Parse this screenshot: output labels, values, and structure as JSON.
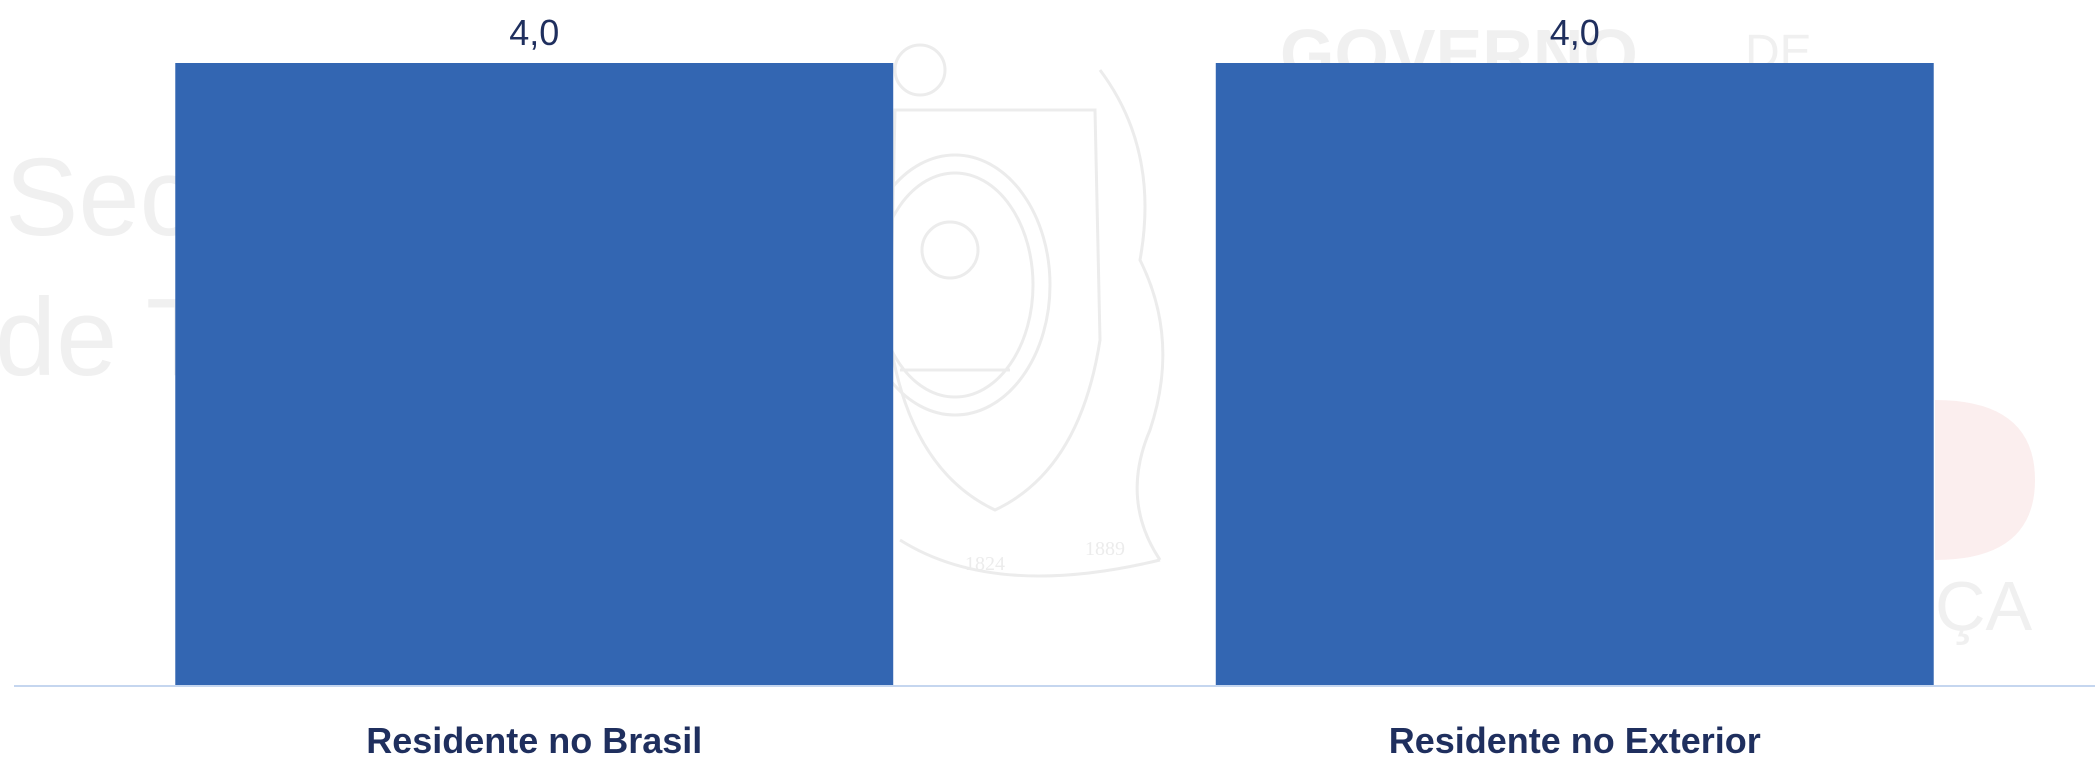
{
  "chart_data": {
    "type": "bar",
    "categories": [
      "Residente no Brasil",
      "Residente no Exterior"
    ],
    "values": [
      4.0,
      4.0
    ],
    "value_labels": [
      "4,0",
      "4,0"
    ],
    "title": "",
    "xlabel": "",
    "ylabel": "",
    "ylim": [
      0,
      4
    ],
    "grid": false,
    "legend": "none"
  },
  "colors": {
    "bar": "#3366b2",
    "value_label": "#1f2f5e",
    "category_label": "#1f2f5e",
    "axis_line": "#c5d6ef",
    "watermark": "#f2f2f2"
  },
  "watermark_text": {
    "line1": "Sec",
    "line2": "de T",
    "top_right": "GOVERNO",
    "top_right_small": "DE",
    "bottom_right": "ÇA",
    "seal_years": [
      "1824",
      "1889"
    ]
  }
}
